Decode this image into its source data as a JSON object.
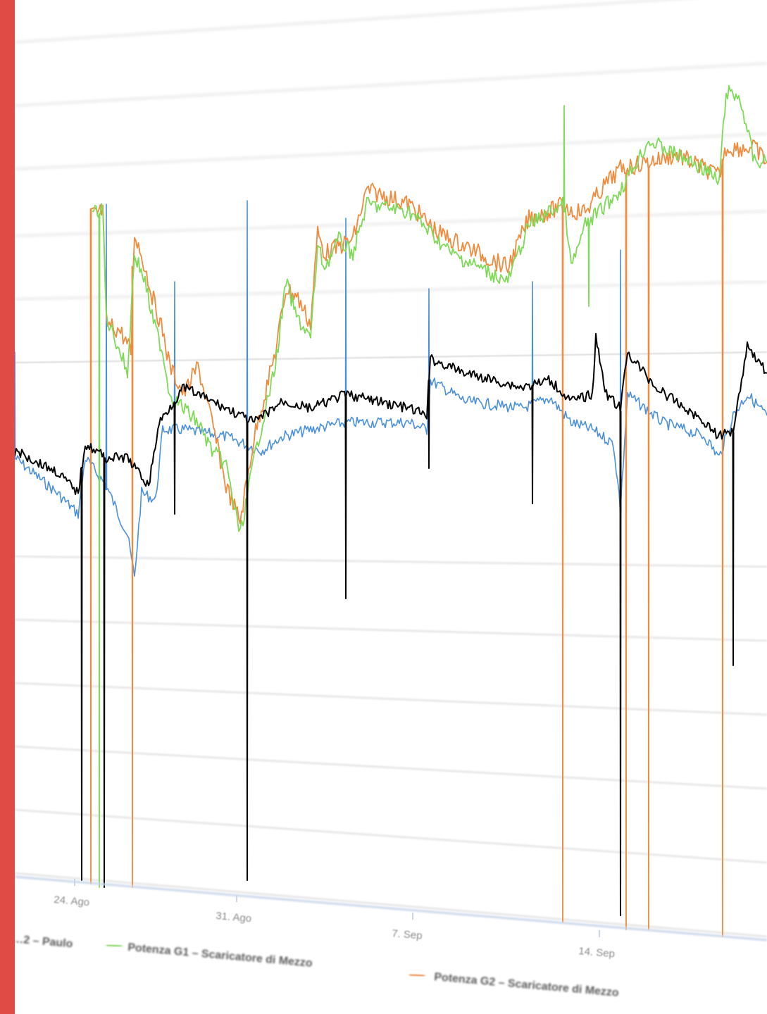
{
  "chart_data": {
    "type": "line",
    "x_ticks": [
      "24. Ago",
      "31. Ago",
      "7. Sep",
      "14. Sep"
    ],
    "grid": true,
    "legend_position": "bottom",
    "series": [
      {
        "name": "…2 – Paulo",
        "color": "#000000",
        "legend_visible": true
      },
      {
        "name": "Potenza G1 – Scaricatore di Mezzo",
        "color": "#7ed957",
        "legend_visible": true
      },
      {
        "name": "Potenza G2 – Scaricatore di Mezzo",
        "color": "#f08a3c",
        "legend_visible": true
      },
      {
        "name": "",
        "color": "#4a90d9",
        "legend_visible": false
      }
    ]
  },
  "colors": {
    "accent": "#e04b45",
    "grid": "#dcdcdc"
  }
}
